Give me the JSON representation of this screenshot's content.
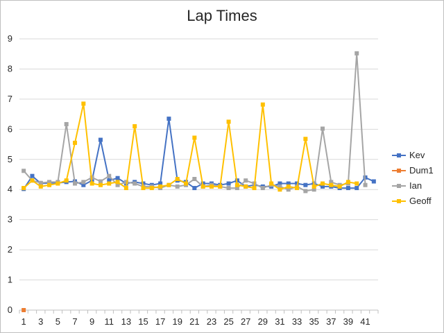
{
  "chart_data": {
    "type": "line",
    "title": "Lap Times",
    "xlabel": "",
    "ylabel": "",
    "ylim": [
      0,
      9
    ],
    "yticks": [
      0,
      1,
      2,
      3,
      4,
      5,
      6,
      7,
      8,
      9
    ],
    "x": [
      1,
      2,
      3,
      4,
      5,
      6,
      7,
      8,
      9,
      10,
      11,
      12,
      13,
      14,
      15,
      16,
      17,
      18,
      19,
      20,
      21,
      22,
      23,
      24,
      25,
      26,
      27,
      28,
      29,
      30,
      31,
      32,
      33,
      34,
      35,
      36,
      37,
      38,
      39,
      40,
      41,
      42
    ],
    "xtick_labels": [
      "1",
      "3",
      "5",
      "7",
      "9",
      "11",
      "13",
      "15",
      "17",
      "19",
      "21",
      "23",
      "25",
      "27",
      "29",
      "31",
      "33",
      "35",
      "37",
      "39",
      "41"
    ],
    "grid": "horizontal",
    "legend_position": "right",
    "series": [
      {
        "name": "Kev",
        "color": "#4472c4",
        "values": [
          4.02,
          4.45,
          4.2,
          4.22,
          4.22,
          4.25,
          4.27,
          4.15,
          4.3,
          5.65,
          4.3,
          4.38,
          4.2,
          4.25,
          4.2,
          4.15,
          4.2,
          6.35,
          4.3,
          4.25,
          4.05,
          4.2,
          4.2,
          4.15,
          4.2,
          4.3,
          4.1,
          4.15,
          4.1,
          4.1,
          4.2,
          4.2,
          4.2,
          4.15,
          4.2,
          4.1,
          4.1,
          4.05,
          4.05,
          4.05,
          4.4,
          4.27
        ]
      },
      {
        "name": "Dum1",
        "color": "#ed7d31",
        "values": [
          0,
          null,
          null,
          null,
          null,
          null,
          null,
          null,
          null,
          null,
          null,
          null,
          null,
          null,
          null,
          null,
          null,
          null,
          null,
          null,
          null,
          null,
          null,
          null,
          null,
          null,
          null,
          null,
          null,
          null,
          null,
          null,
          null,
          null,
          null,
          null,
          null,
          null,
          null,
          null,
          null,
          null
        ]
      },
      {
        "name": "Ian",
        "color": "#a5a5a5",
        "values": [
          4.62,
          4.3,
          4.22,
          4.25,
          4.25,
          6.17,
          4.2,
          4.25,
          4.4,
          4.27,
          4.45,
          4.15,
          4.25,
          4.2,
          4.1,
          4.1,
          4.05,
          4.15,
          4.1,
          4.15,
          4.35,
          4.1,
          4.15,
          4.1,
          4.05,
          4.05,
          4.3,
          4.2,
          4.05,
          4.15,
          4.1,
          4.0,
          4.1,
          3.95,
          4.0,
          6.02,
          4.25,
          4.15,
          4.2,
          8.52,
          4.15,
          null
        ]
      },
      {
        "name": "Geoff",
        "color": "#ffc000",
        "values": [
          4.05,
          4.3,
          4.1,
          4.15,
          4.2,
          4.3,
          5.55,
          6.85,
          4.2,
          4.15,
          4.2,
          4.25,
          4.05,
          6.1,
          4.05,
          4.05,
          4.1,
          4.15,
          4.35,
          4.2,
          5.72,
          4.1,
          4.1,
          4.1,
          6.25,
          4.15,
          4.1,
          4.05,
          6.82,
          4.2,
          4.0,
          4.1,
          4.05,
          5.68,
          4.1,
          4.2,
          4.15,
          4.1,
          4.25,
          4.2,
          null,
          null
        ]
      }
    ]
  }
}
